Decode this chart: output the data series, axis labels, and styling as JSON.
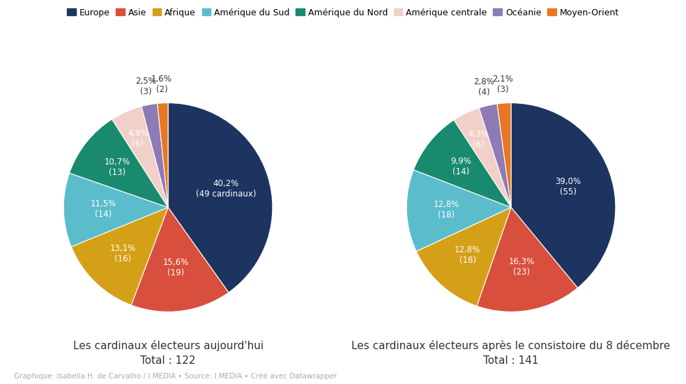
{
  "legend_labels": [
    "Europe",
    "Asie",
    "Afrique",
    "Amérique du Sud",
    "Amérique du Nord",
    "Amérique centrale",
    "Océanie",
    "Moyen-Orient"
  ],
  "legend_colors": [
    "#1d3461",
    "#d94f3d",
    "#d4a017",
    "#5bbccc",
    "#1a8a6e",
    "#f0d0c8",
    "#8e7ab5",
    "#e87722"
  ],
  "chart1_title": "Les cardinaux électeurs aujourd'hui",
  "chart1_subtitle": "Total : 122",
  "chart1_values": [
    49,
    19,
    16,
    14,
    13,
    6,
    3,
    2
  ],
  "chart1_pct": [
    "40,2%",
    "15,6%",
    "13,1%",
    "11,5%",
    "10,7%",
    "4,9%",
    "2,5%",
    "1,6%"
  ],
  "chart1_counts": [
    "49 cardinaux",
    "19",
    "16",
    "14",
    "13",
    "6",
    "3",
    "2"
  ],
  "chart1_label_colors": [
    "white",
    "white",
    "white",
    "white",
    "white",
    "white",
    "black",
    "black"
  ],
  "chart1_outside": [
    false,
    false,
    false,
    false,
    false,
    false,
    true,
    true
  ],
  "chart2_title": "Les cardinaux électeurs après le consistoire du 8 décembre",
  "chart2_subtitle": "Total : 141",
  "chart2_values": [
    55,
    23,
    18,
    18,
    14,
    6,
    4,
    3
  ],
  "chart2_pct": [
    "39,0%",
    "16,3%",
    "12,8%",
    "12,8%",
    "9,9%",
    "4,3%",
    "2,8%",
    "2,1%"
  ],
  "chart2_counts": [
    "55",
    "23",
    "18",
    "18",
    "14",
    "6",
    "4",
    "3"
  ],
  "chart2_label_colors": [
    "white",
    "white",
    "white",
    "white",
    "white",
    "white",
    "black",
    "black"
  ],
  "chart2_outside": [
    false,
    false,
    false,
    false,
    false,
    false,
    true,
    true
  ],
  "colors": [
    "#1d3461",
    "#d94f3d",
    "#d4a017",
    "#5bbccc",
    "#1a8a6e",
    "#f0d0c8",
    "#8e7ab5",
    "#e87722"
  ],
  "footer": "Graphique: Isabella H. de Carvalho / I.MEDIA • Source: I.MEDIA • Créé avec Datawrapper",
  "background_color": "#ffffff",
  "startangle": 90,
  "title_fontsize": 11,
  "label_fontsize": 8.5,
  "legend_fontsize": 9,
  "footer_fontsize": 7.5
}
